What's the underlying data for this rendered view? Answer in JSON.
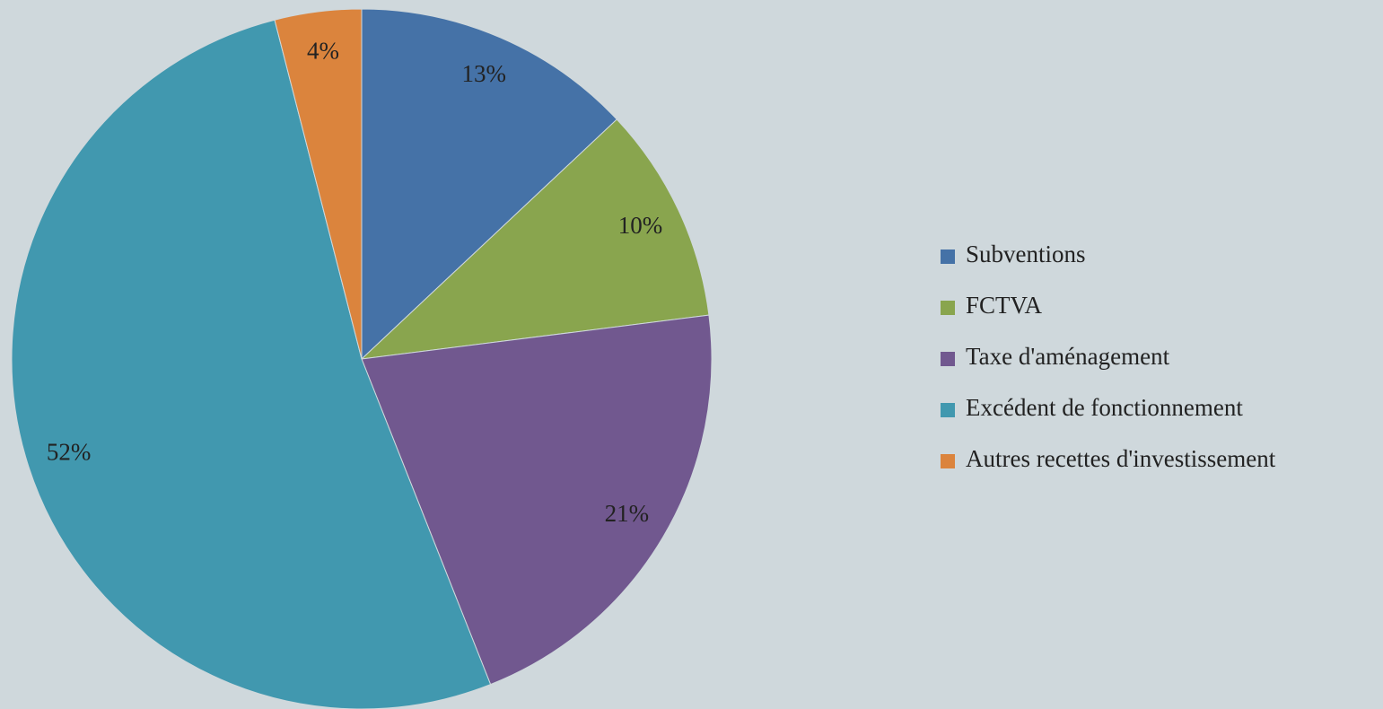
{
  "chart_data": {
    "type": "pie",
    "categories": [
      "Subventions",
      "FCTVA",
      "Taxe d'aménagement",
      "Excédent de fonctionnement",
      "Autres recettes d'investissement"
    ],
    "values": [
      13,
      10,
      21,
      52,
      4
    ],
    "value_labels": [
      "13%",
      "10%",
      "21%",
      "52%",
      "4%"
    ],
    "colors": [
      "#4572a7",
      "#89a54e",
      "#71588f",
      "#4198af",
      "#db843d"
    ],
    "legend": "right"
  }
}
